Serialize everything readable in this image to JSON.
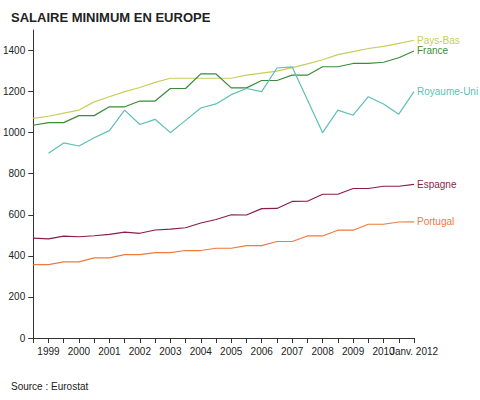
{
  "chart_data": {
    "type": "line",
    "title": "SALAIRE MINIMUM EN EUROPE",
    "source": "Source : Eurostat",
    "categories": [
      null,
      "1999",
      null,
      "2000",
      null,
      "2001",
      null,
      "2002",
      null,
      "2003",
      null,
      "2004",
      null,
      "2005",
      null,
      "2006",
      null,
      "2007",
      null,
      "2008",
      null,
      "2009",
      null,
      "2010",
      null,
      "Janv. 2012"
    ],
    "series": [
      {
        "name": "Pays-Bas",
        "color": "#c5cf5c",
        "values": [
          1070,
          1080,
          1095,
          1110,
          1150,
          1175,
          1200,
          1220,
          1245,
          1265,
          1265,
          1265,
          1265,
          1265,
          1280,
          1290,
          1300,
          1317,
          1335,
          1355,
          1380,
          1395,
          1410,
          1420,
          1435,
          1450
        ]
      },
      {
        "name": "France",
        "color": "#3a8c3a",
        "values": [
          1036,
          1049,
          1049,
          1083,
          1083,
          1126,
          1126,
          1154,
          1154,
          1215,
          1215,
          1286,
          1286,
          1218,
          1218,
          1254,
          1254,
          1280,
          1280,
          1321,
          1321,
          1337,
          1337,
          1343,
          1365,
          1398
        ]
      },
      {
        "name": "Royaume-Uni",
        "color": "#5dbfb5",
        "values": [
          null,
          900,
          950,
          935,
          975,
          1010,
          1110,
          1040,
          1065,
          1000,
          1060,
          1120,
          1140,
          1185,
          1215,
          1200,
          1315,
          1320,
          1160,
          1000,
          1110,
          1085,
          1175,
          1140,
          1090,
          1200
        ]
      },
      {
        "name": "Espagne",
        "color": "#8c1c4c",
        "values": [
          486,
          483,
          496,
          493,
          498,
          505,
          516,
          510,
          526,
          530,
          537,
          560,
          577,
          600,
          599,
          630,
          631,
          665,
          666,
          700,
          700,
          728,
          728,
          739,
          739,
          748
        ]
      },
      {
        "name": "Portugal",
        "color": "#f07a3c",
        "values": [
          357,
          357,
          371,
          371,
          390,
          390,
          406,
          406,
          416,
          416,
          426,
          426,
          437,
          437,
          450,
          450,
          470,
          470,
          497,
          497,
          525,
          525,
          554,
          554,
          565,
          566
        ]
      }
    ],
    "ylim": [
      0,
      1500
    ],
    "yticks": [
      0,
      200,
      400,
      600,
      800,
      1000,
      1200,
      1400
    ],
    "grid": false,
    "marker": "none"
  }
}
